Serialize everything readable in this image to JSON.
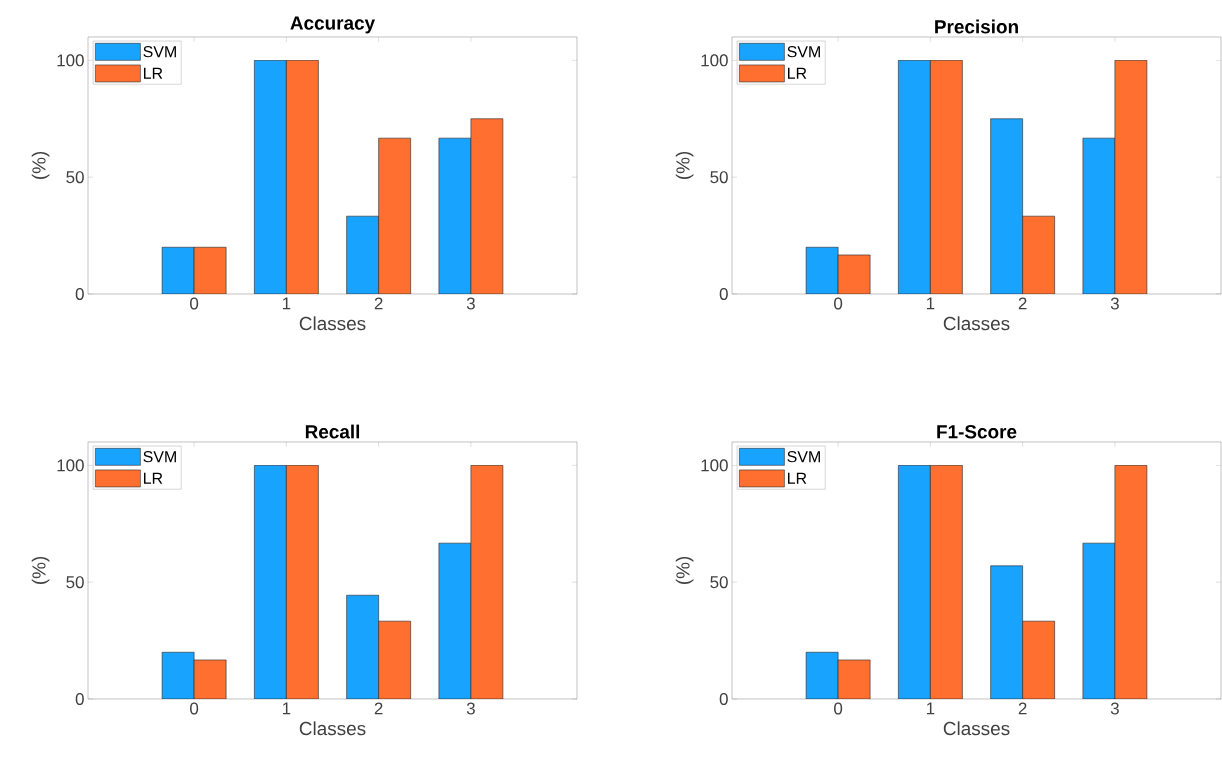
{
  "chart_data": [
    {
      "type": "bar",
      "title": "Accuracy",
      "xlabel": "Classes",
      "ylabel": "(%)",
      "categories": [
        "0",
        "1",
        "2",
        "3"
      ],
      "ylim": [
        0,
        110
      ],
      "yticks": [
        0,
        50,
        100
      ],
      "legend": "top left",
      "series": [
        {
          "name": "SVM",
          "color": "#18a3ff",
          "values": [
            20,
            100,
            33.3,
            66.7
          ]
        },
        {
          "name": "LR",
          "color": "#ff6f2f",
          "values": [
            20,
            100,
            66.7,
            75
          ]
        }
      ]
    },
    {
      "type": "bar",
      "title": "Precision",
      "xlabel": "Classes",
      "ylabel": "(%)",
      "categories": [
        "0",
        "1",
        "2",
        "3"
      ],
      "ylim": [
        0,
        110
      ],
      "yticks": [
        0,
        50,
        100
      ],
      "legend": "top left",
      "series": [
        {
          "name": "SVM",
          "color": "#18a3ff",
          "values": [
            20,
            100,
            75,
            66.7
          ]
        },
        {
          "name": "LR",
          "color": "#ff6f2f",
          "values": [
            16.7,
            100,
            33.3,
            100
          ]
        }
      ]
    },
    {
      "type": "bar",
      "title": "Recall",
      "xlabel": "Classes",
      "ylabel": "(%)",
      "categories": [
        "0",
        "1",
        "2",
        "3"
      ],
      "ylim": [
        0,
        110
      ],
      "yticks": [
        0,
        50,
        100
      ],
      "legend": "top left",
      "series": [
        {
          "name": "SVM",
          "color": "#18a3ff",
          "values": [
            20,
            100,
            44.4,
            66.7
          ]
        },
        {
          "name": "LR",
          "color": "#ff6f2f",
          "values": [
            16.7,
            100,
            33.3,
            100
          ]
        }
      ]
    },
    {
      "type": "bar",
      "title": "F1-Score",
      "xlabel": "Classes",
      "ylabel": "(%)",
      "categories": [
        "0",
        "1",
        "2",
        "3"
      ],
      "ylim": [
        0,
        110
      ],
      "yticks": [
        0,
        50,
        100
      ],
      "legend": "top left",
      "series": [
        {
          "name": "SVM",
          "color": "#18a3ff",
          "values": [
            20,
            100,
            57,
            66.7
          ]
        },
        {
          "name": "LR",
          "color": "#ff6f2f",
          "values": [
            16.7,
            100,
            33.3,
            100
          ]
        }
      ]
    }
  ]
}
